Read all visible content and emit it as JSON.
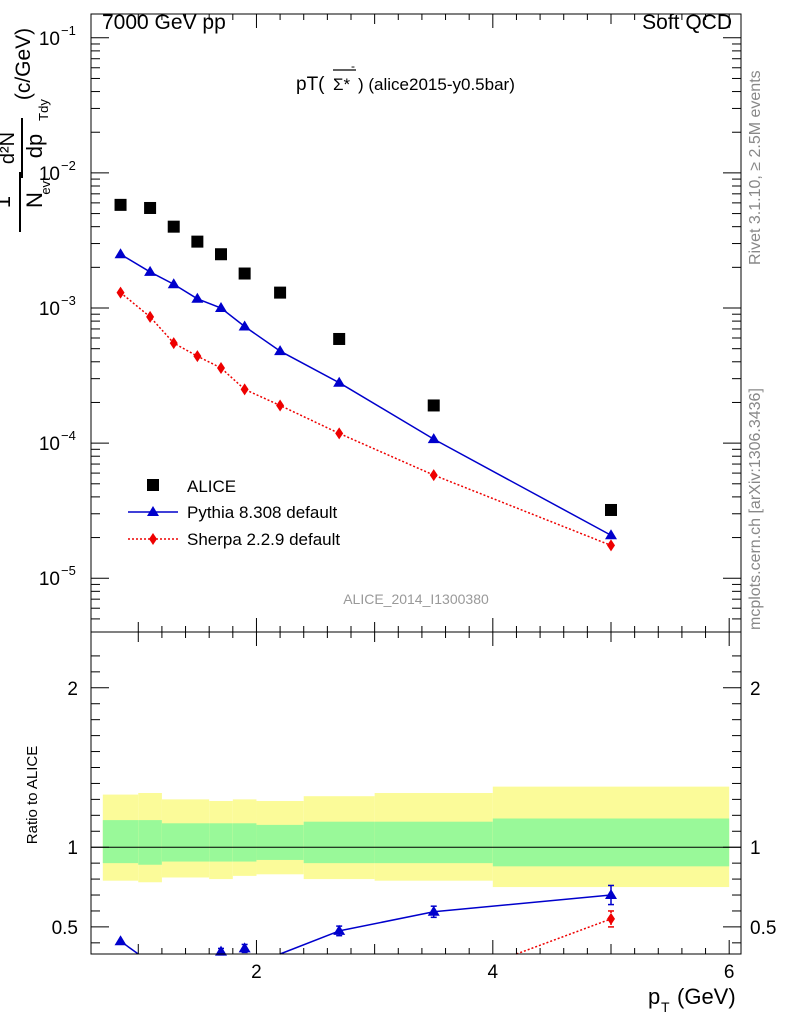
{
  "header": {
    "left": "7000 GeV pp",
    "right": "Soft QCD"
  },
  "plot_title": {
    "prefix": "pT(",
    "particle": "Σ*",
    "particle_sup": "-",
    "suffix": ") (alice2015-y0.5bar)"
  },
  "watermark": "ALICE_2014_I1300380",
  "side_labels": {
    "rivet": "Rivet 3.1.10, ≥ 2.5M events",
    "mcplots": "mcplots.cern.ch [arXiv:1306.3436]"
  },
  "axis_labels": {
    "top_y_frac_num": "1",
    "top_y_frac_den_main": "N",
    "top_y_frac_den_sub": "evt",
    "top_y_deriv_num": "d²N",
    "top_y_deriv_den_main": "dp",
    "top_y_deriv_den_sub": "Tdy",
    "top_y_unit": "(c/GeV)",
    "bottom_y": "Ratio to ALICE",
    "x_main": "p",
    "x_sub": "T",
    "x_unit": "(GeV)"
  },
  "ticks": {
    "top_y": [
      {
        "base": "10",
        "exp": "−1"
      },
      {
        "base": "10",
        "exp": "−2"
      },
      {
        "base": "10",
        "exp": "−3"
      },
      {
        "base": "10",
        "exp": "−4"
      },
      {
        "base": "10",
        "exp": "−5"
      }
    ],
    "bottom_y": [
      "2",
      "1",
      "0.5"
    ],
    "x": [
      "2",
      "4",
      "6"
    ]
  },
  "legend": [
    {
      "label": "ALICE",
      "color": "#000000",
      "marker": "square"
    },
    {
      "label": "Pythia 8.308 default",
      "color": "#0000cc",
      "marker": "triangle"
    },
    {
      "label": "Sherpa 2.2.9 default",
      "color": "#ee0000",
      "marker": "diamond"
    }
  ],
  "chart_data": [
    {
      "type": "scatter",
      "title": "",
      "xlabel": "p_T (GeV)",
      "ylabel": "1/N_evt d²N/dp_T dy (c/GeV)",
      "yscale": "log",
      "xlim": [
        0.6,
        6.1
      ],
      "ylim": [
        4e-06,
        0.15
      ],
      "series": [
        {
          "name": "ALICE",
          "color": "#000000",
          "marker": "square",
          "x": [
            0.85,
            1.1,
            1.3,
            1.5,
            1.7,
            1.9,
            2.2,
            2.7,
            3.5,
            5.0
          ],
          "y": [
            0.0058,
            0.0055,
            0.004,
            0.0031,
            0.0025,
            0.0018,
            0.0013,
            0.00059,
            0.00019,
            3.2e-05
          ]
        },
        {
          "name": "Pythia 8.308 default",
          "color": "#0000cc",
          "marker": "triangle",
          "x": [
            0.85,
            1.1,
            1.3,
            1.5,
            1.7,
            1.9,
            2.2,
            2.7,
            3.5,
            5.0
          ],
          "y": [
            0.0025,
            0.00185,
            0.0015,
            0.00117,
            0.001,
            0.00073,
            0.00048,
            0.00028,
            0.000107,
            2.08e-05
          ]
        },
        {
          "name": "Sherpa 2.2.9 default",
          "color": "#ee0000",
          "marker": "diamond",
          "x": [
            0.85,
            1.1,
            1.3,
            1.5,
            1.7,
            1.9,
            2.2,
            2.7,
            3.5,
            5.0
          ],
          "y": [
            0.0013,
            0.00086,
            0.00055,
            0.00044,
            0.00036,
            0.00025,
            0.00019,
            0.000118,
            5.8e-05,
            1.75e-05
          ]
        }
      ]
    },
    {
      "type": "line",
      "title": "",
      "xlabel": "p_T (GeV)",
      "ylabel": "Ratio to ALICE",
      "xlim": [
        0.6,
        6.1
      ],
      "ylim": [
        0.33,
        2.35
      ],
      "bands": {
        "edges": [
          0.7,
          1.0,
          1.2,
          1.6,
          1.8,
          2.0,
          2.4,
          3.0,
          4.0,
          6.0
        ],
        "stat_up": [
          1.17,
          1.17,
          1.15,
          1.15,
          1.15,
          1.14,
          1.16,
          1.16,
          1.18
        ],
        "stat_dn": [
          0.9,
          0.89,
          0.91,
          0.91,
          0.91,
          0.92,
          0.9,
          0.9,
          0.88
        ],
        "syst_up": [
          1.33,
          1.34,
          1.3,
          1.29,
          1.3,
          1.29,
          1.32,
          1.34,
          1.38
        ],
        "syst_dn": [
          0.79,
          0.78,
          0.81,
          0.8,
          0.82,
          0.83,
          0.8,
          0.79,
          0.75
        ],
        "stat_color": "#99f999",
        "syst_color": "#fbfb99"
      },
      "series": [
        {
          "name": "Pythia 8.308 default",
          "color": "#0000cc",
          "marker": "triangle",
          "x": [
            0.85,
            1.7,
            1.9,
            2.7,
            3.5,
            5.0
          ],
          "y": [
            0.41,
            0.345,
            0.365,
            0.475,
            0.595,
            0.7
          ],
          "err": [
            0,
            0.02,
            0.025,
            0.03,
            0.035,
            0.06
          ],
          "extend_down_from": [
            [
              0.85,
              0.41
            ],
            [
              1.0,
              0.33
            ]
          ],
          "extend_up_into": [
            [
              2.2,
              0.33
            ],
            [
              2.7,
              0.475
            ]
          ]
        },
        {
          "name": "Sherpa 2.2.9 default",
          "color": "#ee0000",
          "marker": "diamond",
          "x": [
            5.0
          ],
          "y": [
            0.55
          ],
          "err": [
            0.05
          ],
          "extend_up_into": [
            [
              4.2,
              0.33
            ],
            [
              5.0,
              0.55
            ]
          ]
        }
      ]
    }
  ]
}
